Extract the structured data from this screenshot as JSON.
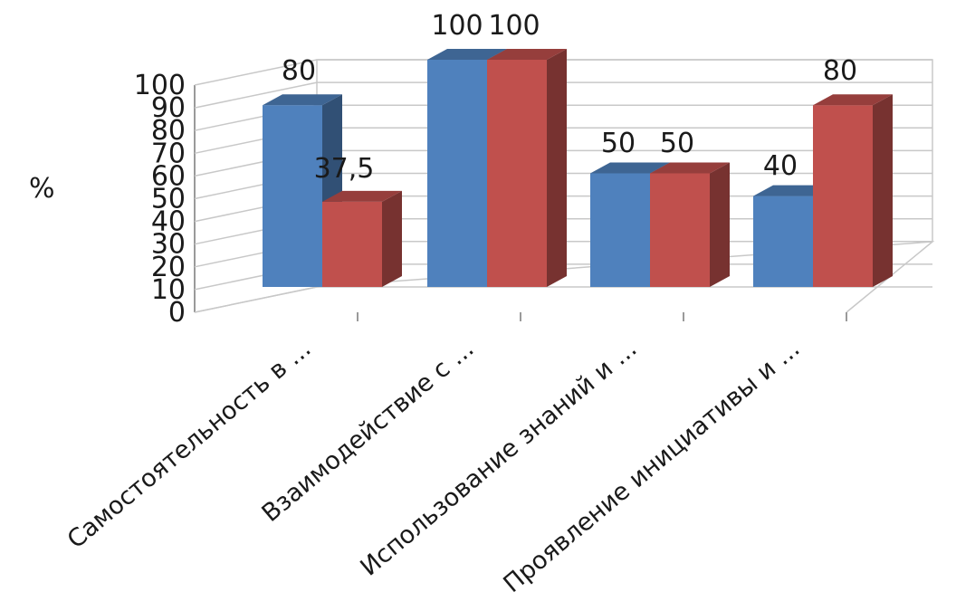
{
  "chart_data": {
    "type": "bar",
    "title": "",
    "xlabel": "",
    "ylabel": "%",
    "ylim": [
      0,
      100
    ],
    "yticks": [
      "0",
      "10",
      "20",
      "30",
      "40",
      "50",
      "60",
      "70",
      "80",
      "90",
      "100"
    ],
    "grid": true,
    "legend": "none",
    "categories": [
      "Самостоятельность в ...",
      "Взаимодействие с ...",
      "Использование знаний и ...",
      "Проявление инициативы и ..."
    ],
    "series": [
      {
        "values": [
          80,
          100,
          50,
          40
        ],
        "labels": [
          "80",
          "100",
          "50",
          "40"
        ],
        "color": "#4f81bd"
      },
      {
        "values": [
          37.5,
          100,
          50,
          80
        ],
        "labels": [
          "37,5",
          "100",
          "50",
          "80"
        ],
        "color": "#c0504d"
      }
    ]
  }
}
